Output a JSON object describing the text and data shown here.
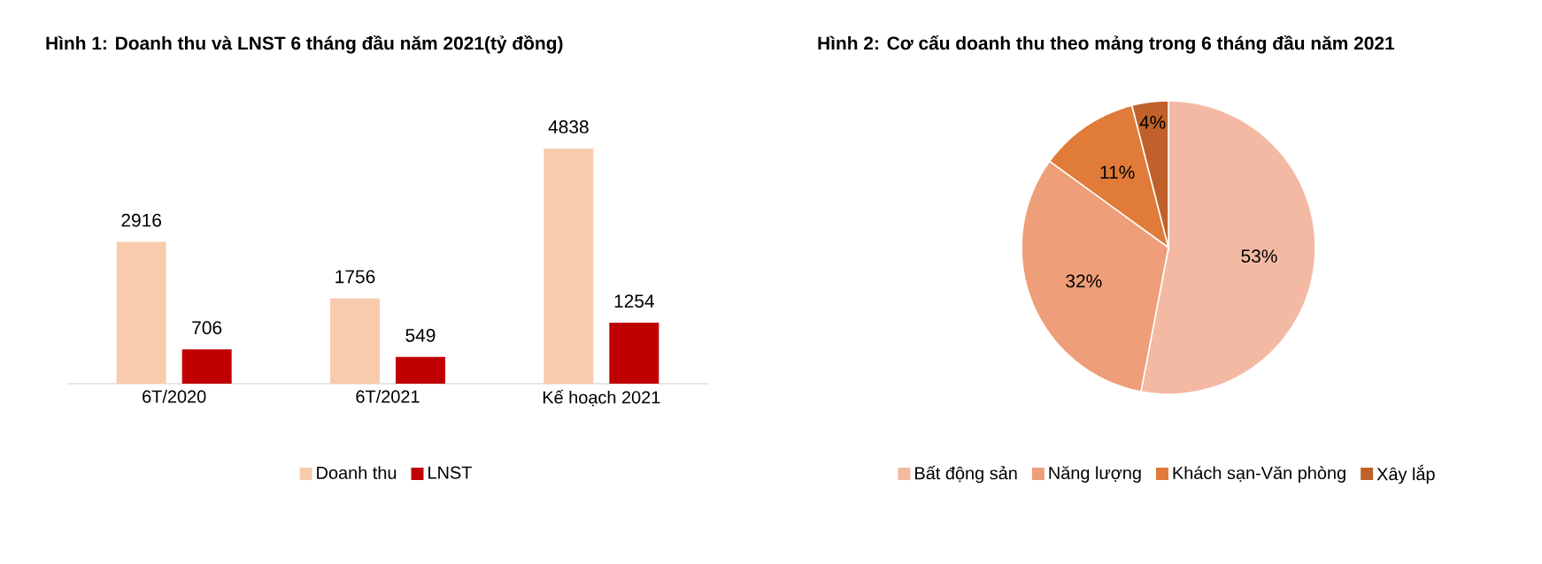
{
  "chart_data": [
    {
      "type": "bar",
      "title": "Hình 1: Doanh thu và LNST 6 tháng đầu năm 2021(tỷ đồng)",
      "categories": [
        "6T/2020",
        "6T/2021",
        "Kế hoạch 2021"
      ],
      "series": [
        {
          "name": "Doanh thu",
          "color": "#f8cbad",
          "values": [
            2916,
            1756,
            4838
          ]
        },
        {
          "name": "LNST",
          "color": "#c00000",
          "values": [
            706,
            549,
            1254
          ]
        }
      ],
      "data_labels": true,
      "legend": "bottom"
    },
    {
      "type": "pie",
      "title": "Hình 2: Cơ cấu doanh thu theo mảng trong 6 tháng đầu năm 2021",
      "categories": [
        "Bất động sản",
        "Năng lượng",
        "Khách sạn-Văn phòng",
        "Xây lắp"
      ],
      "values": [
        53,
        32,
        11,
        4
      ],
      "value_labels": [
        "53%",
        "32%",
        "11%",
        "4%"
      ],
      "colors": [
        "#f4b9a2",
        "#ee9e78",
        "#e07b39",
        "#c0612b"
      ],
      "legend": "bottom"
    }
  ]
}
